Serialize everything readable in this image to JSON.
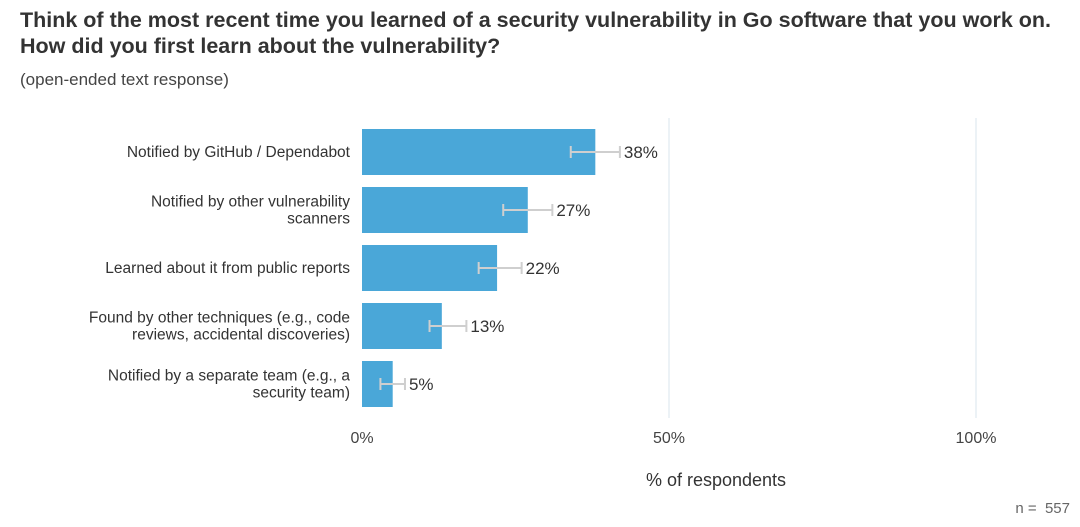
{
  "title": "Think of the most recent time you learned of a security vulnerability in Go software that you work on. How did you first learn about the vulnerability?",
  "subtitle": "(open-ended text response)",
  "n_label": "n =  557",
  "colors": {
    "bar": "#4aa7d8",
    "grid": "#e6eef3",
    "errorbar": "#cfcfcf",
    "text": "#333333"
  },
  "chart_data": {
    "type": "bar",
    "orientation": "horizontal",
    "categories": [
      [
        "Notified by GitHub / Dependabot"
      ],
      [
        "Notified by other vulnerability",
        "scanners"
      ],
      [
        "Learned about it from public reports"
      ],
      [
        "Found by other techniques (e.g., code",
        "reviews, accidental discoveries)"
      ],
      [
        "Notified by a separate team (e.g., a",
        "security team)"
      ]
    ],
    "values": [
      38,
      27,
      22,
      13,
      5
    ],
    "value_labels": [
      "38%",
      "27%",
      "22%",
      "13%",
      "5%"
    ],
    "error_low": [
      34,
      23,
      19,
      11,
      3
    ],
    "error_high": [
      42,
      31,
      26,
      17,
      7
    ],
    "xlim": [
      0,
      100
    ],
    "xticks": [
      0,
      50,
      100
    ],
    "xtick_labels": [
      "0%",
      "50%",
      "100%"
    ],
    "xlabel": "% of respondents",
    "grid": true
  }
}
